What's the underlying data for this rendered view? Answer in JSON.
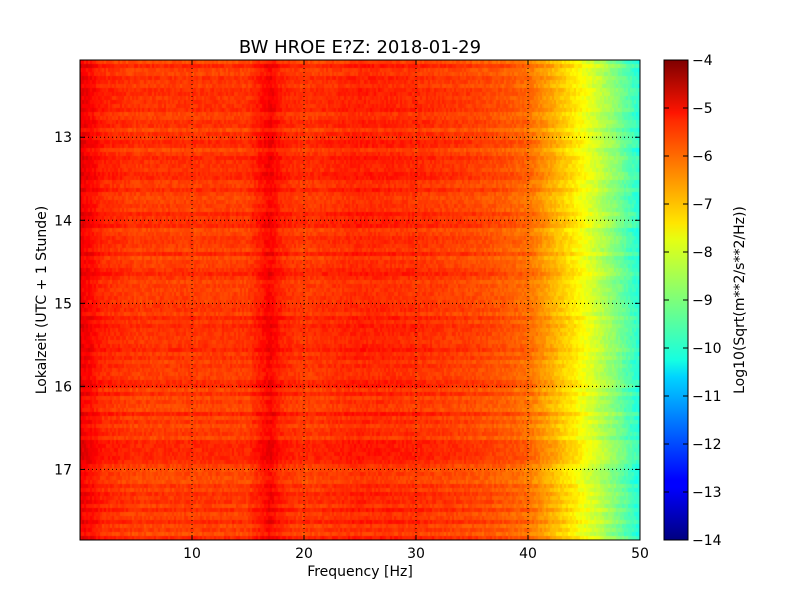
{
  "chart_data": {
    "type": "heatmap",
    "title": "BW HROE E?Z: 2018-01-29",
    "xlabel": "Frequency [Hz]",
    "ylabel": "Lokalzeit (UTC + 1 Stunde)",
    "xlim": [
      0,
      50
    ],
    "ylim": [
      17.85,
      12.07
    ],
    "x_ticks": [
      10,
      20,
      30,
      40,
      50
    ],
    "y_ticks": [
      13,
      14,
      15,
      16,
      17
    ],
    "grid": true,
    "colorbar": {
      "label": "Log10(Sqrt(m**2/s**2/Hz))",
      "range": [
        -14,
        -4
      ],
      "ticks": [
        -4,
        -5,
        -6,
        -7,
        -8,
        -9,
        -10,
        -11,
        -12,
        -13,
        -14
      ],
      "colormap": "jet"
    },
    "value_profile": {
      "description_note": "approximate column-wise log amplitude vs frequency",
      "frequency_hz": [
        0,
        1,
        2,
        5,
        10,
        15,
        17,
        18,
        20,
        25,
        30,
        35,
        38,
        40,
        42,
        44,
        46,
        48,
        50
      ],
      "log10_amplitude": [
        -5.1,
        -5.3,
        -5.6,
        -5.8,
        -5.8,
        -5.8,
        -5.2,
        -5.6,
        -5.8,
        -5.6,
        -5.7,
        -5.9,
        -6.1,
        -6.3,
        -6.9,
        -7.5,
        -8.2,
        -9.0,
        -9.9
      ]
    }
  }
}
